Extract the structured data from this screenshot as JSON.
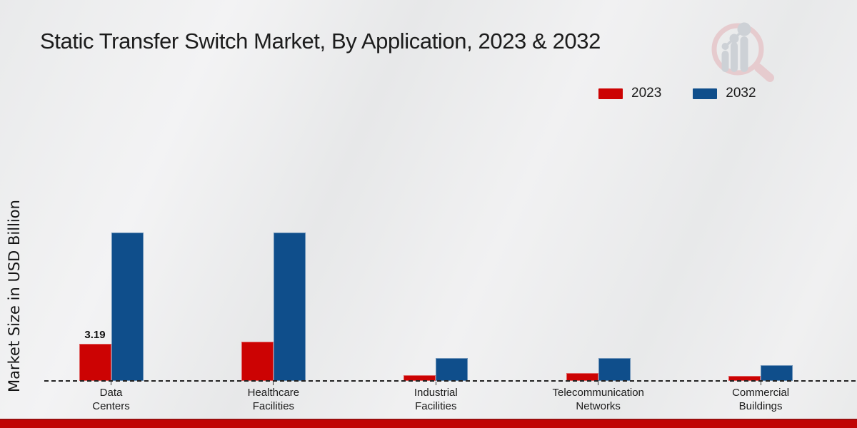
{
  "chart_data": {
    "type": "bar",
    "title": "Static Transfer Switch Market, By Application, 2023 & 2032",
    "xlabel": "",
    "ylabel": "Market Size in USD Billion",
    "categories": [
      "Data Centers",
      "Healthcare Facilities",
      "Industrial Facilities",
      "Telecommunication Networks",
      "Commercial Buildings"
    ],
    "category_label_lines": [
      [
        "Data",
        "Centers"
      ],
      [
        "Healthcare",
        "Facilities"
      ],
      [
        "Industrial",
        "Facilities"
      ],
      [
        "Telecommunication",
        "Networks"
      ],
      [
        "Commercial",
        "Buildings"
      ]
    ],
    "series": [
      {
        "name": "2023",
        "color": "#cc0303",
        "values": [
          3.19,
          3.35,
          0.49,
          0.66,
          0.4
        ]
      },
      {
        "name": "2032",
        "color": "#0f4e8b",
        "values": [
          12.76,
          12.76,
          1.94,
          1.98,
          1.37
        ]
      }
    ],
    "annotations": [
      {
        "category_index": 0,
        "series_index": 0,
        "text": "3.19"
      }
    ],
    "ylim": [
      0,
      14
    ],
    "grid": false,
    "legend_position": "top-right",
    "x_axis_style": "dashed-baseline"
  },
  "branding": {
    "logo_name": "market-research-magnifier-logo",
    "logo_ring_color": "#e6cbce",
    "logo_bars_color": "#cdd1d6",
    "footer_strip_color": "#c00505"
  }
}
